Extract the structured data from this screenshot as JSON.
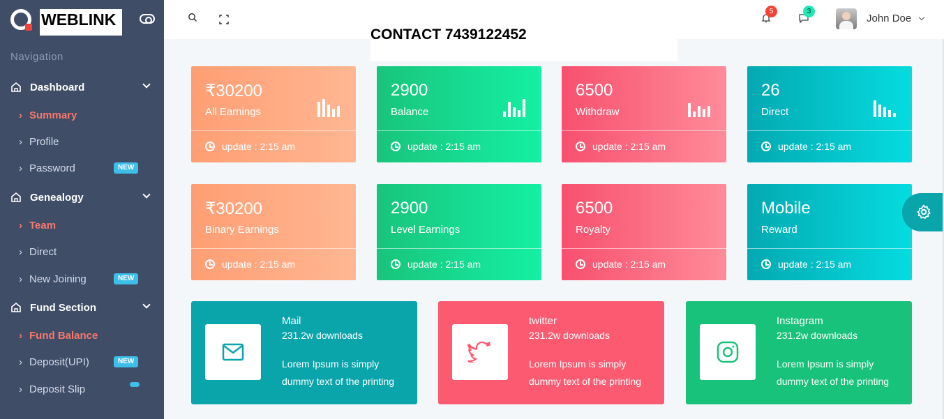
{
  "brand": {
    "name": "WEBLINK"
  },
  "contact": {
    "text": "CONTACT 7439122452"
  },
  "sidebar": {
    "caption": "Navigation",
    "sections": [
      {
        "label": "Dashboard",
        "items": [
          {
            "label": "Summary",
            "active": true
          },
          {
            "label": "Profile"
          },
          {
            "label": "Password",
            "badge": "NEW"
          }
        ]
      },
      {
        "label": "Genealogy",
        "items": [
          {
            "label": "Team",
            "active": true
          },
          {
            "label": "Direct"
          },
          {
            "label": "New Joining",
            "badge": "NEW"
          }
        ]
      },
      {
        "label": "Fund Section",
        "items": [
          {
            "label": "Fund Balance",
            "active": true
          },
          {
            "label": "Deposit(UPI)",
            "badge": "NEW"
          },
          {
            "label": "Deposit Slip"
          }
        ]
      }
    ]
  },
  "header": {
    "notifications_count": "5",
    "messages_count": "3",
    "user_name": "John Doe"
  },
  "stats": [
    {
      "value": "₹30200",
      "label": "All Earnings",
      "footer": "update : 2:15 am",
      "color": "#ff9e74"
    },
    {
      "value": "2900",
      "label": "Balance",
      "footer": "update : 2:15 am",
      "color": "#19c47b"
    },
    {
      "value": "6500",
      "label": "Withdraw",
      "footer": "update : 2:15 am",
      "color": "#f7506e"
    },
    {
      "value": "26",
      "label": "Direct",
      "footer": "update : 2:15 am",
      "color": "#04a9b2"
    },
    {
      "value": "₹30200",
      "label": "Binary Earnings",
      "footer": "update : 2:15 am",
      "color": "#ff9e74"
    },
    {
      "value": "2900",
      "label": "Level Earnings",
      "footer": "update : 2:15 am",
      "color": "#19c47b"
    },
    {
      "value": "6500",
      "label": "Royalty",
      "footer": "update : 2:15 am",
      "color": "#f7506e"
    },
    {
      "value": "Mobile",
      "label": "Reward",
      "footer": "update : 2:15 am",
      "color": "#04a9b2"
    }
  ],
  "social": [
    {
      "title": "Mail",
      "downloads": "231.2w downloads",
      "desc1": "Lorem Ipsum is simply",
      "desc2": "dummy text of the printing",
      "icon": "mail-icon",
      "color": "#0aa4ab"
    },
    {
      "title": "twitter",
      "downloads": "231.2w downloads",
      "desc1": "Lorem Ipsum is simply",
      "desc2": "dummy text of the printing",
      "icon": "twitter-icon",
      "color": "#fb5a70"
    },
    {
      "title": "Instagram",
      "downloads": "231.2w downloads",
      "desc1": "Lorem Ipsum is simply",
      "desc2": "dummy text of the printing",
      "icon": "instagram-icon",
      "color": "#18c27a"
    }
  ]
}
